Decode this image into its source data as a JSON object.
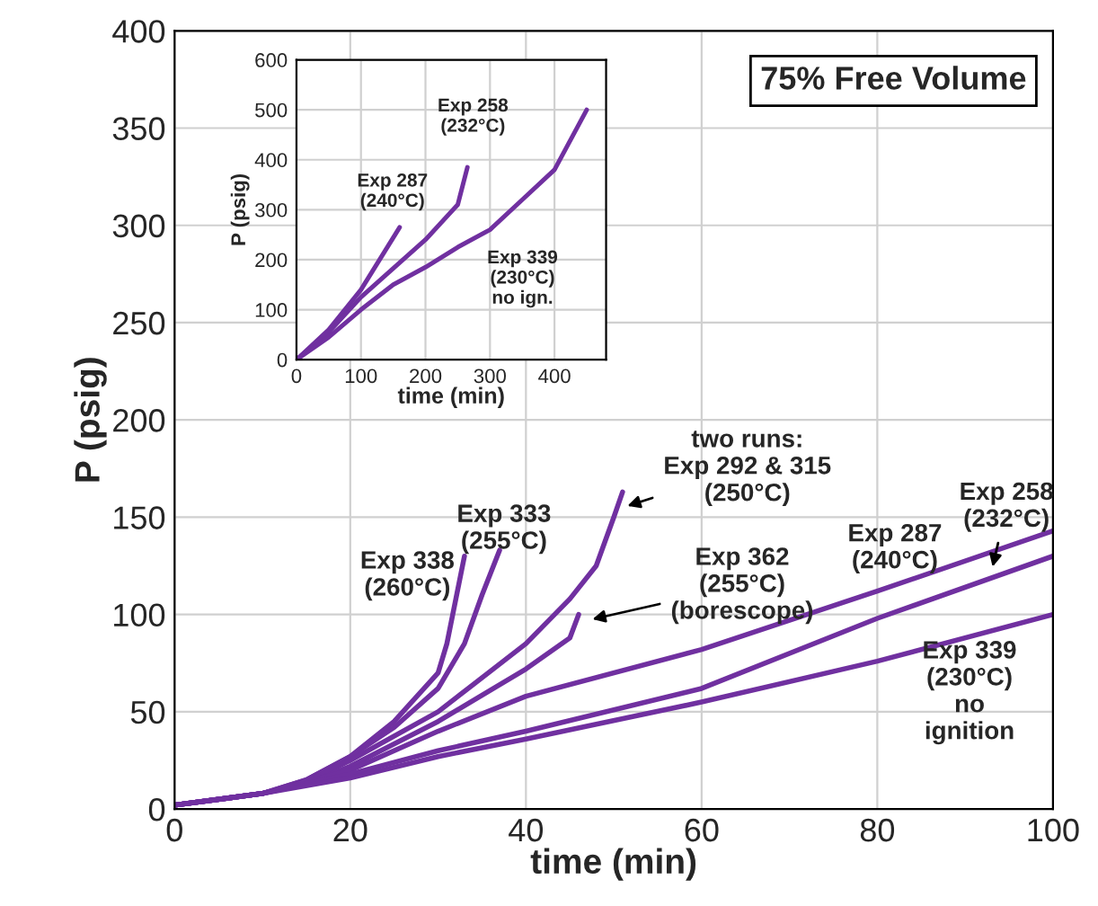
{
  "chart_data": [
    {
      "type": "line",
      "title": "75% Free Volume",
      "xlabel": "time (min)",
      "ylabel": "P (psig)",
      "xlim": [
        0,
        100
      ],
      "ylim": [
        0,
        400
      ],
      "xticks": [
        0,
        20,
        40,
        60,
        80,
        100
      ],
      "yticks": [
        0,
        50,
        100,
        150,
        200,
        250,
        300,
        350,
        400
      ],
      "grid": true,
      "line_style": "solid",
      "series": [
        {
          "color": "#7030a0",
          "x": [
            0,
            10,
            15,
            20,
            25,
            30,
            31,
            33
          ],
          "values": [
            2,
            8,
            15,
            27,
            45,
            70,
            85,
            130
          ]
        },
        {
          "color": "#7030a0",
          "x": [
            0,
            10,
            15,
            20,
            25,
            30,
            33,
            35,
            37
          ],
          "values": [
            2,
            8,
            15,
            27,
            42,
            62,
            85,
            110,
            133
          ]
        },
        {
          "color": "#7030a0",
          "x": [
            0,
            10,
            15,
            20,
            30,
            40,
            45,
            48,
            50,
            51
          ],
          "values": [
            2,
            8,
            14,
            25,
            50,
            85,
            108,
            125,
            150,
            163
          ]
        },
        {
          "color": "#7030a0",
          "x": [
            0,
            10,
            15,
            20,
            30,
            40,
            45,
            46
          ],
          "values": [
            2,
            8,
            13,
            22,
            45,
            72,
            88,
            100
          ]
        },
        {
          "color": "#7030a0",
          "x": [
            0,
            10,
            20,
            30,
            40,
            60,
            80,
            100
          ],
          "values": [
            2,
            8,
            20,
            40,
            58,
            82,
            112,
            143
          ]
        },
        {
          "color": "#7030a0",
          "x": [
            0,
            10,
            20,
            30,
            40,
            60,
            80,
            100
          ],
          "values": [
            2,
            8,
            18,
            30,
            40,
            62,
            98,
            130
          ]
        },
        {
          "color": "#7030a0",
          "x": [
            0,
            10,
            20,
            30,
            40,
            60,
            80,
            100
          ],
          "values": [
            2,
            8,
            16,
            27,
            36,
            55,
            76,
            100
          ]
        }
      ],
      "annotations": [
        "Exp 338\n(260°C)",
        "Exp 333\n(255°C)",
        {
          "text": "two runs:\nExp 292 & 315\n(250°C)",
          "x": 51,
          "y": 155
        },
        {
          "text": "Exp 362\n(255°C)\n(borescope)",
          "x": 47,
          "y": 97
        },
        "Exp 287\n(240°C)",
        {
          "text": "Exp 258\n(232°C)",
          "x": 93,
          "y": 122
        },
        "Exp 339\n(230°C)\nno\nignition"
      ]
    },
    {
      "type": "line",
      "xlabel": "time (min)",
      "ylabel": "P (psig)",
      "xlim": [
        0,
        480
      ],
      "ylim": [
        0,
        600
      ],
      "xticks": [
        0,
        100,
        200,
        300,
        400
      ],
      "yticks": [
        0,
        100,
        200,
        300,
        400,
        500,
        600
      ],
      "grid": true,
      "line_style": "solid",
      "series": [
        {
          "color": "#7030a0",
          "x": [
            0,
            50,
            100,
            160
          ],
          "values": [
            0,
            60,
            140,
            265
          ]
        },
        {
          "color": "#7030a0",
          "x": [
            0,
            50,
            100,
            200,
            250,
            265
          ],
          "values": [
            0,
            55,
            125,
            240,
            310,
            385
          ]
        },
        {
          "color": "#7030a0",
          "x": [
            0,
            50,
            100,
            150,
            200,
            250,
            300,
            350,
            400,
            450
          ],
          "values": [
            0,
            45,
            100,
            150,
            185,
            225,
            260,
            320,
            380,
            500
          ]
        }
      ],
      "annotations": [
        "Exp 258\n(232°C)",
        "Exp 287\n(240°C)",
        "Exp 339\n(230°C)\nno ign."
      ]
    }
  ]
}
